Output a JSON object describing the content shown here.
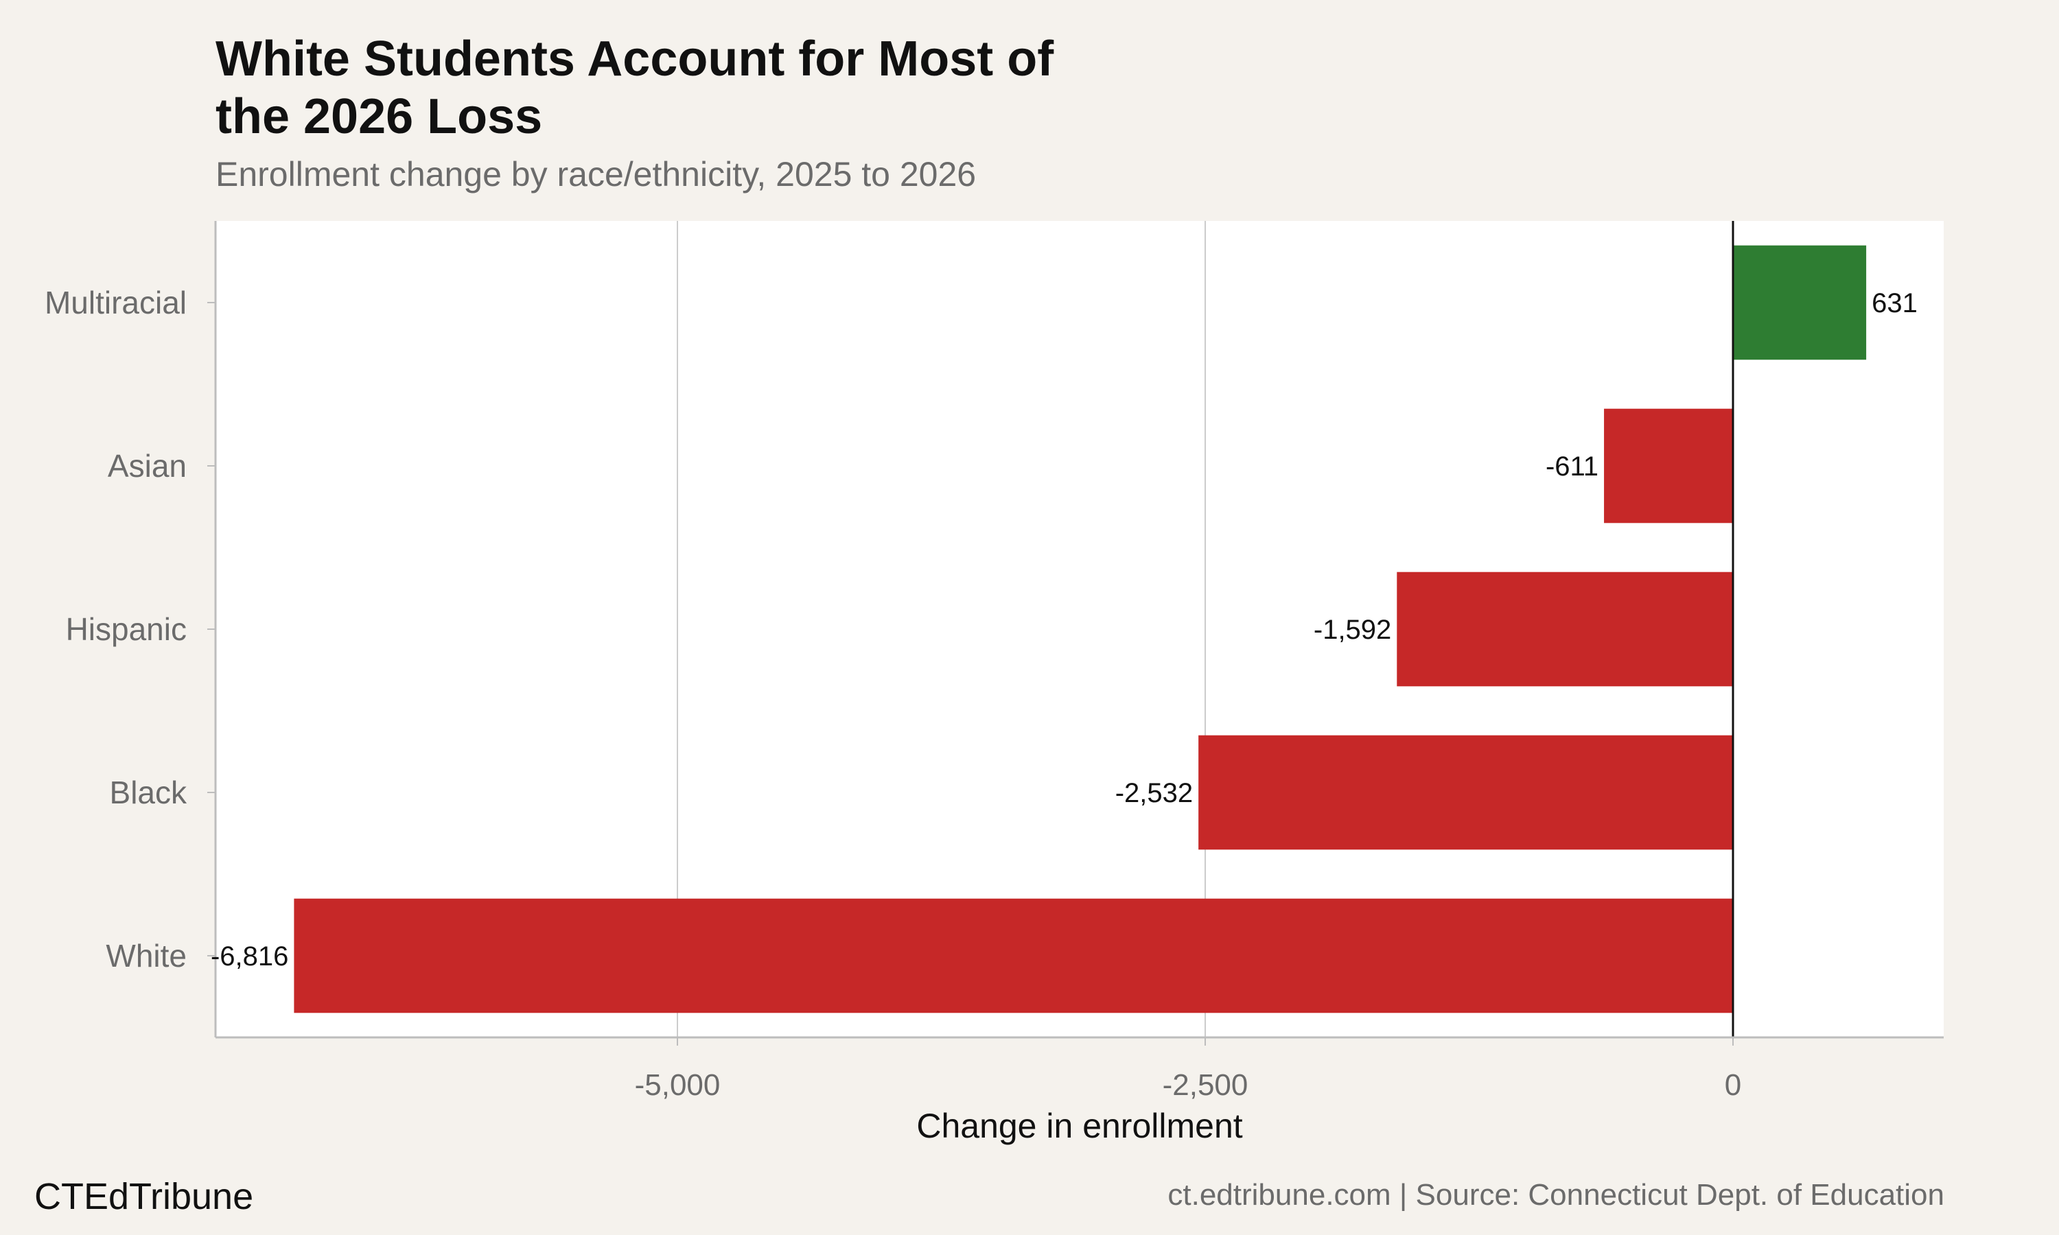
{
  "header": {
    "title_line1": "White Students Account for Most of",
    "title_line2": "the 2026 Loss",
    "subtitle": "Enrollment change by race/ethnicity, 2025 to 2026"
  },
  "footer": {
    "brand": "CTEdTribune",
    "source": "ct.edtribune.com | Source: Connecticut Dept. of Education"
  },
  "colors": {
    "positive": "#2e7d32",
    "negative": "#c62828",
    "background": "#f5f2ed",
    "panel": "#ffffff",
    "grid": "#cccccc"
  },
  "chart_data": {
    "type": "bar",
    "orientation": "horizontal",
    "categories": [
      "Multiracial",
      "Asian",
      "Hispanic",
      "Black",
      "White"
    ],
    "values": [
      631,
      -611,
      -1592,
      -2532,
      -6816
    ],
    "value_labels": [
      "631",
      "-611",
      "-1,592",
      "-2,532",
      "-6,816"
    ],
    "xlabel": "Change in enrollment",
    "xlim": [
      -7200,
      1000
    ],
    "xticks": [
      -5000,
      -2500,
      0
    ],
    "xtick_labels": [
      "-5,000",
      "-2,500",
      "0"
    ],
    "grid": true,
    "legend": "none"
  }
}
